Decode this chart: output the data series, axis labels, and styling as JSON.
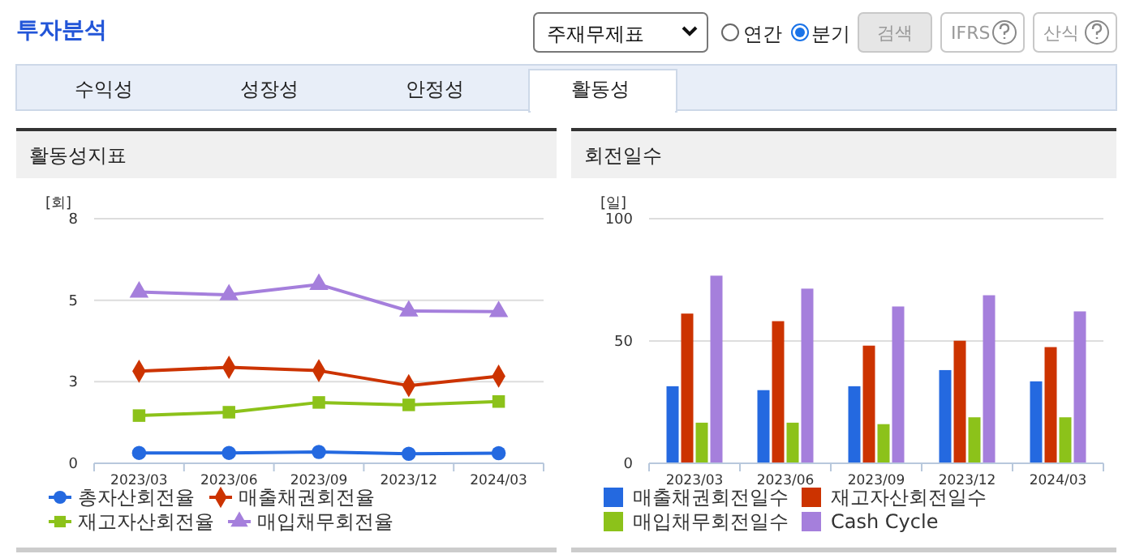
{
  "chart_data": [
    {
      "type": "other",
      "title": "투자분석",
      "annotations": [
        "주재무제표",
        "연간",
        "분기",
        "검색",
        "IFRS",
        "산식",
        "수익성",
        "성장성",
        "안정성",
        "활동성"
      ]
    },
    {
      "type": "line",
      "title": "활동성지표",
      "ylabel": "[회]",
      "categories": [
        "2023/03",
        "2023/06",
        "2023/09",
        "2023/12",
        "2024/03"
      ],
      "ylim": [
        0,
        8
      ],
      "yticks": [
        0,
        {
          "value": 2.667,
          "label": "3"
        },
        {
          "value": 5.333,
          "label": "5"
        },
        8
      ],
      "grid": "y",
      "legend": "bottom",
      "series": [
        {
          "name": "총자산회전율",
          "color": "#2469e0",
          "marker": "circle",
          "values": [
            0.34,
            0.34,
            0.37,
            0.31,
            0.33
          ]
        },
        {
          "name": "매출채권회전율",
          "color": "#cc3300",
          "marker": "diamond",
          "values": [
            3.01,
            3.14,
            3.03,
            2.54,
            2.85
          ]
        },
        {
          "name": "재고자산회전율",
          "color": "#8cc21a",
          "marker": "square",
          "values": [
            1.56,
            1.67,
            1.99,
            1.91,
            2.02
          ]
        },
        {
          "name": "매입채무회전율",
          "color": "#a57fdc",
          "marker": "triangle",
          "values": [
            5.6,
            5.51,
            5.85,
            4.98,
            4.96
          ]
        }
      ]
    },
    {
      "type": "bar",
      "title": "회전일수",
      "ylabel": "[일]",
      "categories": [
        "2023/03",
        "2023/06",
        "2023/09",
        "2023/12",
        "2024/03"
      ],
      "ylim": [
        0,
        100
      ],
      "yticks": [
        0,
        50,
        100
      ],
      "grid": "y",
      "legend": "bottom",
      "series": [
        {
          "name": "매출채권회전일수",
          "color": "#2469e0",
          "values": [
            31.5,
            29.9,
            31.5,
            38.1,
            33.5
          ]
        },
        {
          "name": "재고자산회전일수",
          "color": "#cc3300",
          "values": [
            61.2,
            58.1,
            48.1,
            50.1,
            47.5
          ]
        },
        {
          "name": "매입채무회전일수",
          "color": "#8cc21a",
          "values": [
            16.6,
            16.6,
            16.0,
            18.8,
            18.8
          ]
        },
        {
          "name": "Cash Cycle",
          "color": "#a57fdc",
          "values": [
            76.7,
            71.4,
            64.1,
            68.7,
            62.1
          ]
        }
      ]
    }
  ]
}
